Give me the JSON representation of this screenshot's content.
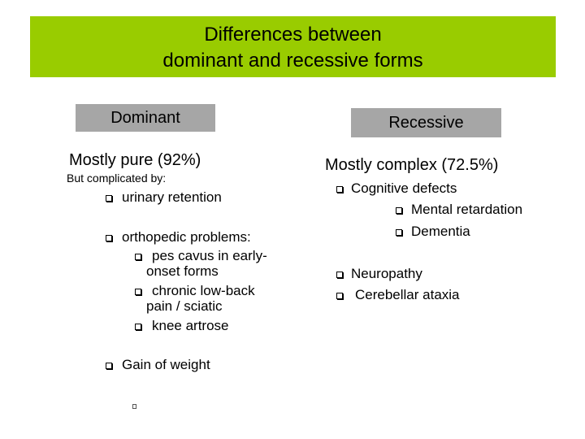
{
  "header": {
    "title_lines": [
      "Differences between",
      "dominant and recessive forms"
    ]
  },
  "left": {
    "label": "Dominant",
    "summary": "Mostly pure (92%)",
    "note": "But complicated by:",
    "items": [
      {
        "text": "urinary retention"
      },
      {
        "text": "orthopedic problems:",
        "sub": [
          "pes cavus in early-onset forms",
          "chronic low-back pain / sciatic",
          "knee artrose"
        ]
      },
      {
        "text": "Gain of weight"
      }
    ]
  },
  "right": {
    "label": "Recessive",
    "summary": "Mostly complex (72.5%)",
    "items": [
      {
        "text": "Cognitive defects",
        "sub": [
          "Mental retardation",
          "Dementia"
        ]
      },
      {
        "text": "Neuropathy"
      },
      {
        "text": "Cerebellar ataxia"
      }
    ]
  }
}
